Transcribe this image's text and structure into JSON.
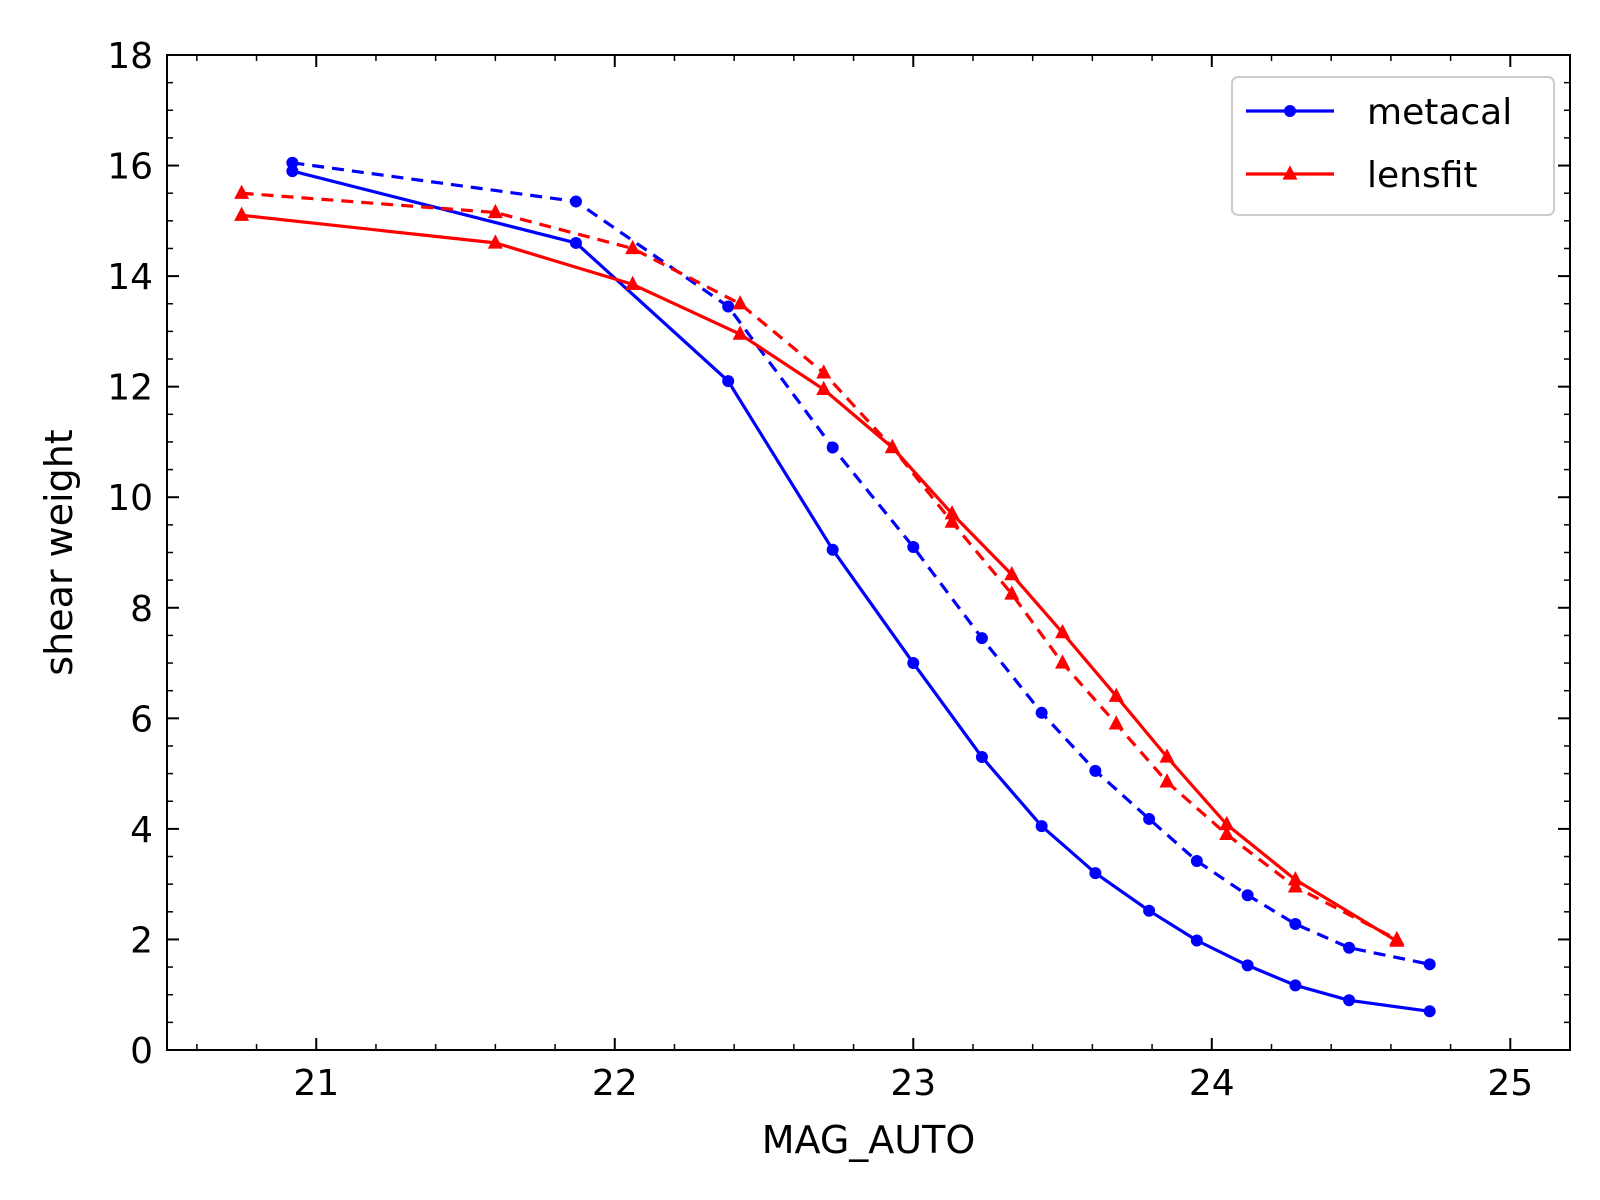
{
  "chart_data": {
    "type": "line",
    "title": "",
    "xlabel": "MAG_AUTO",
    "ylabel": "shear weight",
    "xlim": [
      20.5,
      25.2
    ],
    "ylim": [
      0,
      18
    ],
    "xticks": [
      21,
      22,
      23,
      24,
      25
    ],
    "yticks": [
      0,
      2,
      4,
      6,
      8,
      10,
      12,
      14,
      16,
      18
    ],
    "legend_position": "top-right",
    "legend": [
      {
        "label": "metacal",
        "color": "#0000ff",
        "marker": "circle"
      },
      {
        "label": "lensfit",
        "color": "#ff0000",
        "marker": "triangle"
      }
    ],
    "series": [
      {
        "name": "metacal (solid)",
        "color": "#0000ff",
        "marker": "circle",
        "dash": "solid",
        "x": [
          20.92,
          21.87,
          22.38,
          22.73,
          23.0,
          23.23,
          23.43,
          23.61,
          23.79,
          23.95,
          24.12,
          24.28,
          24.46,
          24.73
        ],
        "y": [
          15.9,
          14.6,
          12.1,
          9.05,
          7.0,
          5.3,
          4.05,
          3.2,
          2.52,
          1.98,
          1.53,
          1.17,
          0.9,
          0.7
        ]
      },
      {
        "name": "metacal (dashed)",
        "color": "#0000ff",
        "marker": "circle",
        "dash": "dashed",
        "x": [
          20.92,
          21.87,
          22.38,
          22.73,
          23.0,
          23.23,
          23.43,
          23.61,
          23.79,
          23.95,
          24.12,
          24.28,
          24.46,
          24.73
        ],
        "y": [
          16.05,
          15.35,
          13.45,
          10.9,
          9.1,
          7.45,
          6.1,
          5.05,
          4.18,
          3.42,
          2.8,
          2.28,
          1.85,
          1.55
        ]
      },
      {
        "name": "lensfit (solid)",
        "color": "#ff0000",
        "marker": "triangle",
        "dash": "solid",
        "x": [
          20.75,
          21.6,
          22.06,
          22.42,
          22.7,
          22.93,
          23.13,
          23.33,
          23.5,
          23.68,
          23.85,
          24.05,
          24.28,
          24.62
        ],
        "y": [
          15.1,
          14.6,
          13.85,
          12.95,
          11.95,
          10.9,
          9.7,
          8.6,
          7.55,
          6.4,
          5.3,
          4.08,
          3.08,
          1.97
        ]
      },
      {
        "name": "lensfit (dashed)",
        "color": "#ff0000",
        "marker": "triangle",
        "dash": "dashed",
        "x": [
          20.75,
          21.6,
          22.06,
          22.42,
          22.7,
          22.93,
          23.13,
          23.33,
          23.5,
          23.68,
          23.85,
          24.05,
          24.28,
          24.62
        ],
        "y": [
          15.5,
          15.15,
          14.5,
          13.5,
          12.25,
          10.9,
          9.55,
          8.25,
          7.0,
          5.9,
          4.85,
          3.9,
          2.95,
          2.0
        ]
      }
    ]
  }
}
